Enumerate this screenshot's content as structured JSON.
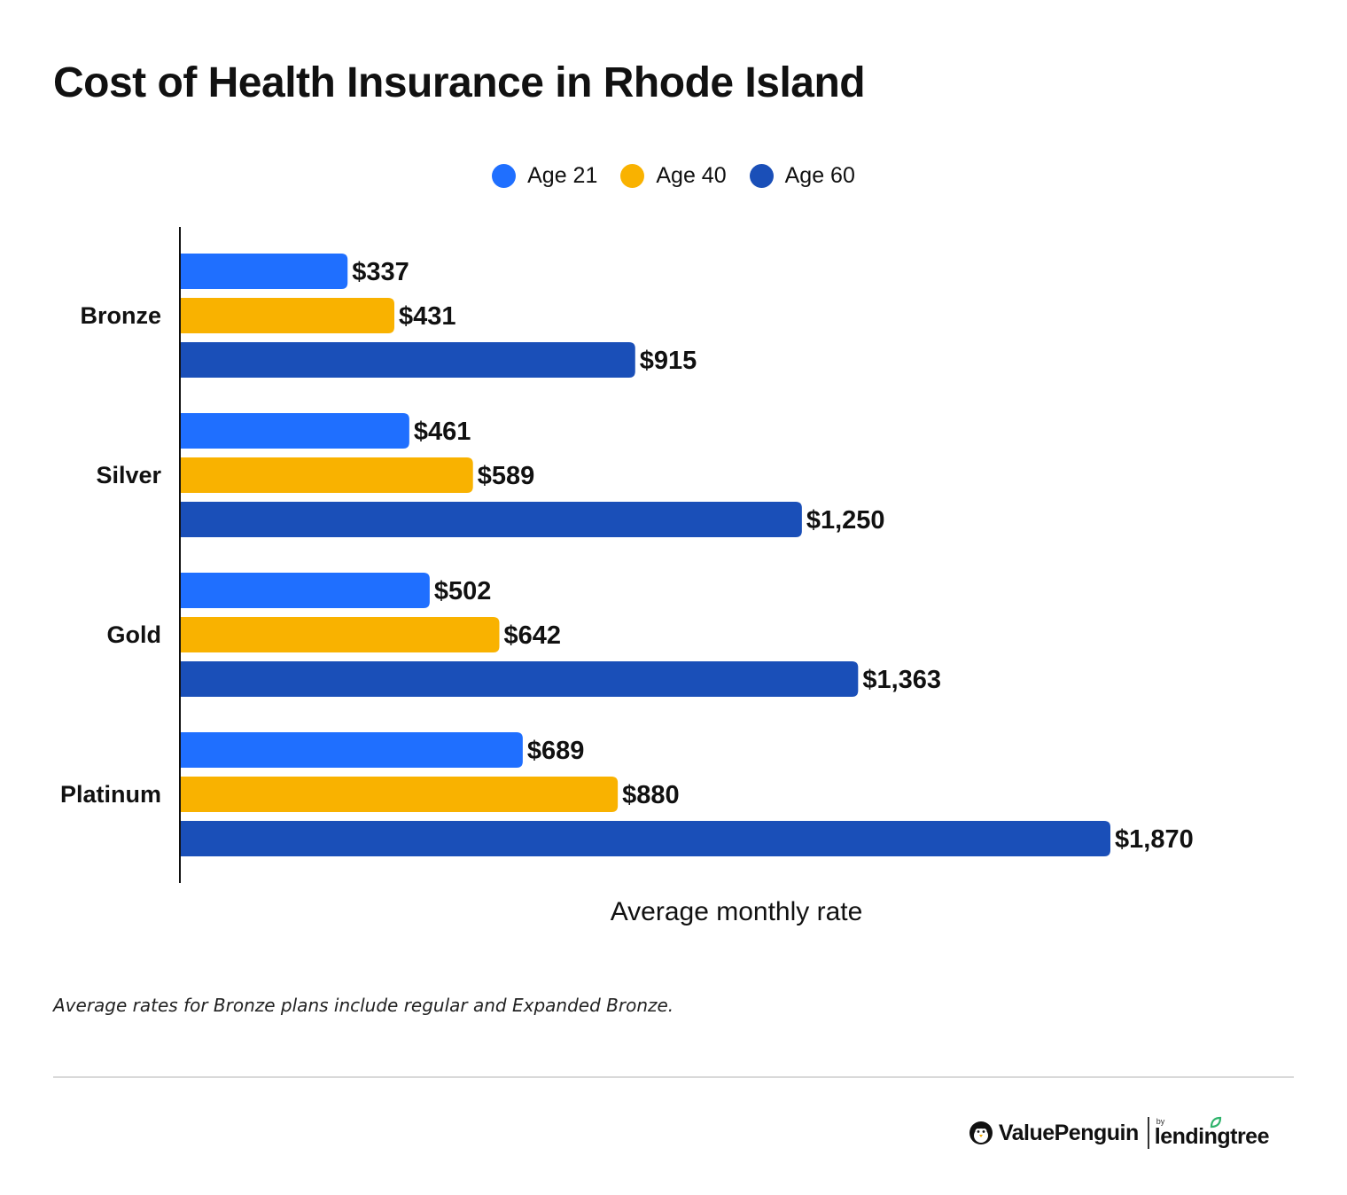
{
  "chart_data": {
    "type": "bar",
    "orientation": "horizontal",
    "title": "Cost of Health Insurance in Rhode Island",
    "xlabel": "Average monthly rate",
    "categories": [
      "Bronze",
      "Silver",
      "Gold",
      "Platinum"
    ],
    "series": [
      {
        "name": "Age 21",
        "color": "#1f6fff",
        "values": [
          337,
          461,
          502,
          689
        ],
        "labels": [
          "$337",
          "$461",
          "$502",
          "$689"
        ]
      },
      {
        "name": "Age 40",
        "color": "#f9b200",
        "values": [
          431,
          589,
          642,
          880
        ],
        "labels": [
          "$431",
          "$589",
          "$642",
          "$880"
        ]
      },
      {
        "name": "Age 60",
        "color": "#1a4fb8",
        "values": [
          915,
          1250,
          1363,
          1870
        ],
        "labels": [
          "$915",
          "$1,250",
          "$1,363",
          "$1,870"
        ]
      }
    ],
    "xlim": [
      0,
      1870
    ],
    "grid": false,
    "legend_position": "top-center"
  },
  "footnote": "Average rates for Bronze plans include regular and Expanded Bronze.",
  "branding": {
    "valuepenguin": "ValuePenguin",
    "by": "by",
    "lendingtree": "lendingtree",
    "icons": [
      "penguin-icon",
      "leaf-icon"
    ]
  }
}
